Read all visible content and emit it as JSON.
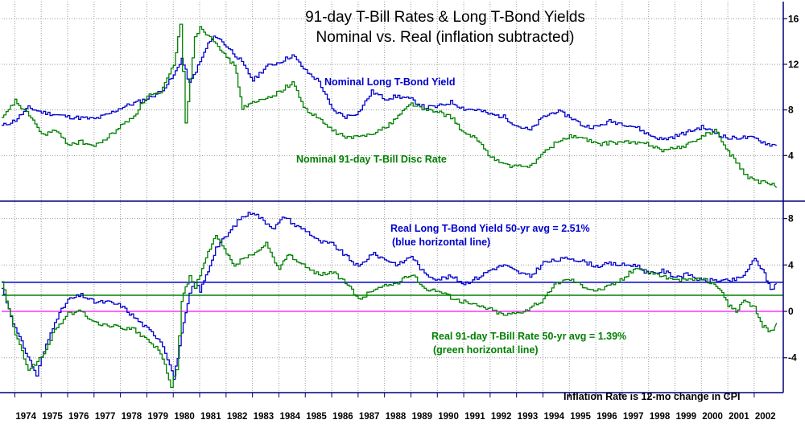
{
  "colors": {
    "background": "#ffffff",
    "grid": "#9a9a9a",
    "axis": "#00007a",
    "bond": "#0000cc",
    "bill": "#008000",
    "zero_line": "#ff33ff"
  },
  "chart_data": [
    {
      "panel": "top",
      "type": "line",
      "title": "91-day T-Bill Rates & Long T-Bond Yields",
      "subtitle": "Nominal vs. Real (inflation subtracted)",
      "ylim": [
        0,
        17.5
      ],
      "yticks": [
        4,
        8,
        12,
        16
      ],
      "grid": true,
      "x_unit": "year",
      "series": [
        {
          "name": "Nominal Long T-Bond Yield",
          "color": "#0000cc",
          "x": [
            1973.5,
            1974.0,
            1974.5,
            1975.0,
            1976.0,
            1977.0,
            1977.5,
            1978.0,
            1978.5,
            1979.0,
            1979.5,
            1980.0,
            1980.3,
            1980.6,
            1981.0,
            1981.3,
            1981.6,
            1982.0,
            1982.5,
            1983.0,
            1983.5,
            1984.0,
            1984.5,
            1985.0,
            1985.5,
            1986.0,
            1986.5,
            1987.0,
            1987.5,
            1988.0,
            1988.5,
            1989.0,
            1989.5,
            1990.0,
            1990.5,
            1991.0,
            1991.5,
            1992.0,
            1992.5,
            1993.0,
            1993.5,
            1994.0,
            1994.5,
            1995.0,
            1995.5,
            1996.0,
            1996.5,
            1997.0,
            1997.5,
            1998.0,
            1998.5,
            1999.0,
            1999.5,
            2000.0,
            2000.5,
            2001.0,
            2001.5,
            2002.0,
            2002.5,
            2002.85
          ],
          "values": [
            6.6,
            7.1,
            8.2,
            7.8,
            7.4,
            7.2,
            7.6,
            8.2,
            8.6,
            9.0,
            9.6,
            11.0,
            12.5,
            10.3,
            12.2,
            13.8,
            14.5,
            13.6,
            12.4,
            10.6,
            11.8,
            12.2,
            12.8,
            11.4,
            10.5,
            8.0,
            7.4,
            7.8,
            9.6,
            9.0,
            9.2,
            8.9,
            8.2,
            8.3,
            8.7,
            8.1,
            8.0,
            7.6,
            7.4,
            6.6,
            6.2,
            7.4,
            7.9,
            7.4,
            6.6,
            6.5,
            7.0,
            6.8,
            6.5,
            5.8,
            5.4,
            5.7,
            6.1,
            6.5,
            6.0,
            5.5,
            5.6,
            5.5,
            5.0,
            4.9
          ]
        },
        {
          "name": "Nominal 91-day T-Bill Disc Rate",
          "color": "#008000",
          "x": [
            1973.5,
            1974.0,
            1974.3,
            1974.6,
            1975.0,
            1975.5,
            1976.0,
            1976.5,
            1977.0,
            1977.5,
            1978.0,
            1978.5,
            1979.0,
            1979.5,
            1980.0,
            1980.25,
            1980.45,
            1980.8,
            1981.0,
            1981.3,
            1981.6,
            1982.0,
            1982.3,
            1982.6,
            1983.0,
            1983.5,
            1984.0,
            1984.5,
            1985.0,
            1985.5,
            1986.0,
            1986.5,
            1987.0,
            1987.5,
            1988.0,
            1988.5,
            1989.0,
            1989.5,
            1990.0,
            1990.5,
            1991.0,
            1991.5,
            1992.0,
            1992.5,
            1993.0,
            1993.5,
            1994.0,
            1994.5,
            1995.0,
            1995.5,
            1996.0,
            1996.5,
            1997.0,
            1997.5,
            1998.0,
            1998.5,
            1999.0,
            1999.5,
            2000.0,
            2000.5,
            2001.0,
            2001.3,
            2001.6,
            2002.0,
            2002.5,
            2002.85
          ],
          "values": [
            7.2,
            8.8,
            8.0,
            7.4,
            5.8,
            6.2,
            5.0,
            5.2,
            4.8,
            5.6,
            6.6,
            7.5,
            9.3,
            9.4,
            12.0,
            15.5,
            7.0,
            14.5,
            15.2,
            14.6,
            14.0,
            12.5,
            12.0,
            8.2,
            8.6,
            9.0,
            9.6,
            10.4,
            8.0,
            7.2,
            6.2,
            5.6,
            5.6,
            6.0,
            6.4,
            7.5,
            8.6,
            8.0,
            7.8,
            7.4,
            5.9,
            5.4,
            3.9,
            3.2,
            3.0,
            3.1,
            4.2,
            5.2,
            5.7,
            5.5,
            5.0,
            5.1,
            5.2,
            5.1,
            5.0,
            4.5,
            4.6,
            5.0,
            5.7,
            6.2,
            4.3,
            3.5,
            2.4,
            1.7,
            1.6,
            1.2
          ]
        }
      ],
      "annotations": [
        "Nominal Long T-Bond Yield",
        "Nominal 91-day T-Bill Disc Rate"
      ]
    },
    {
      "panel": "bottom",
      "type": "line",
      "ylim": [
        -7.0,
        9.5
      ],
      "yticks": [
        -4,
        0,
        4,
        8
      ],
      "grid": true,
      "x_unit": "year",
      "xlim": [
        1973.5,
        2003.1
      ],
      "xticks": [
        "1974",
        "1975",
        "1976",
        "1977",
        "1978",
        "1979",
        "1980",
        "1981",
        "1982",
        "1983",
        "1984",
        "1985",
        "1986",
        "1987",
        "1988",
        "1989",
        "1990",
        "1991",
        "1992",
        "1993",
        "1994",
        "1995",
        "1996",
        "1997",
        "1998",
        "1999",
        "2000",
        "2001",
        "2002"
      ],
      "series": [
        {
          "name": "Real Long T-Bond Yield",
          "color": "#0000cc",
          "x": [
            1973.5,
            1974.0,
            1974.4,
            1974.8,
            1975.0,
            1975.5,
            1976.0,
            1976.5,
            1977.0,
            1977.5,
            1978.0,
            1978.5,
            1979.0,
            1979.5,
            1979.85,
            1980.0,
            1980.3,
            1980.6,
            1980.8,
            1981.0,
            1981.3,
            1981.6,
            1982.0,
            1982.5,
            1983.0,
            1983.4,
            1983.8,
            1984.2,
            1984.6,
            1985.0,
            1985.5,
            1986.0,
            1986.5,
            1987.0,
            1987.5,
            1988.0,
            1988.5,
            1989.0,
            1989.5,
            1990.0,
            1990.5,
            1991.0,
            1991.5,
            1992.0,
            1992.5,
            1993.0,
            1993.5,
            1994.0,
            1994.5,
            1995.0,
            1995.5,
            1996.0,
            1996.5,
            1997.0,
            1997.5,
            1998.0,
            1998.5,
            1999.0,
            1999.5,
            2000.0,
            2000.5,
            2001.0,
            2001.5,
            2002.0,
            2002.3,
            2002.6,
            2002.85
          ],
          "values": [
            2.0,
            -1.5,
            -3.5,
            -5.5,
            -4.0,
            -0.8,
            1.0,
            1.4,
            0.8,
            0.8,
            0.5,
            -0.5,
            -1.5,
            -2.5,
            -4.5,
            -5.8,
            -2.0,
            1.5,
            2.5,
            1.8,
            3.5,
            5.5,
            6.5,
            8.0,
            8.6,
            7.8,
            7.2,
            8.2,
            7.4,
            7.0,
            6.0,
            5.8,
            4.8,
            3.8,
            5.0,
            4.5,
            4.0,
            4.8,
            3.2,
            2.8,
            3.0,
            2.4,
            2.9,
            3.6,
            4.0,
            3.4,
            3.0,
            4.2,
            4.4,
            4.6,
            4.3,
            3.9,
            4.1,
            4.0,
            4.0,
            3.2,
            3.5,
            3.0,
            3.2,
            2.6,
            2.7,
            2.6,
            2.9,
            4.5,
            3.6,
            1.9,
            2.4
          ]
        },
        {
          "name": "Real 91-day T-Bill Rate",
          "color": "#008000",
          "x": [
            1973.5,
            1974.0,
            1974.5,
            1975.0,
            1975.5,
            1976.0,
            1976.5,
            1977.0,
            1977.5,
            1978.0,
            1978.5,
            1979.0,
            1979.5,
            1979.9,
            1980.1,
            1980.3,
            1980.6,
            1980.8,
            1981.0,
            1981.3,
            1981.6,
            1982.0,
            1982.3,
            1982.6,
            1983.0,
            1983.5,
            1984.0,
            1984.3,
            1984.6,
            1985.0,
            1985.5,
            1986.0,
            1986.5,
            1987.0,
            1987.5,
            1988.0,
            1988.5,
            1989.0,
            1989.5,
            1990.0,
            1990.5,
            1991.0,
            1991.5,
            1992.0,
            1992.5,
            1993.0,
            1993.5,
            1994.0,
            1994.5,
            1995.0,
            1995.5,
            1996.0,
            1996.5,
            1997.0,
            1997.5,
            1998.0,
            1998.5,
            1999.0,
            1999.5,
            2000.0,
            2000.4,
            2000.7,
            2001.0,
            2001.3,
            2001.6,
            2002.0,
            2002.3,
            2002.6,
            2002.85
          ],
          "values": [
            2.5,
            -2.0,
            -5.0,
            -4.0,
            -1.6,
            -0.2,
            0.0,
            -1.0,
            -1.2,
            -1.4,
            -1.6,
            -2.5,
            -3.5,
            -6.5,
            -5.0,
            1.0,
            3.0,
            2.0,
            3.2,
            5.0,
            6.5,
            5.0,
            3.8,
            4.6,
            4.8,
            5.8,
            3.5,
            5.0,
            4.5,
            3.8,
            3.2,
            3.4,
            2.5,
            1.0,
            1.8,
            2.2,
            2.5,
            3.2,
            2.0,
            1.8,
            1.2,
            0.8,
            0.5,
            0.2,
            -0.3,
            -0.1,
            0.3,
            1.0,
            2.5,
            2.8,
            2.2,
            1.8,
            2.2,
            2.8,
            3.8,
            3.4,
            3.1,
            2.6,
            2.8,
            2.8,
            2.4,
            2.0,
            0.5,
            0.0,
            0.9,
            0.3,
            -1.2,
            -1.8,
            -1.0
          ]
        }
      ],
      "reference_lines": [
        {
          "name": "Real Long T-Bond Yield 50-yr avg",
          "value": 2.51,
          "color": "#0000cc"
        },
        {
          "name": "Real 91-day T-Bill Rate 50-yr avg",
          "value": 1.39,
          "color": "#008000"
        },
        {
          "name": "zero",
          "value": 0,
          "color": "#ff33ff"
        }
      ],
      "annotations": [
        "Real Long T-Bond Yield 50-yr avg = 2.51%",
        "(blue horizontal line)",
        "Real 91-day T-Bill Rate 50-yr avg = 1.39%",
        "(green horizontal line)",
        "Inflation Rate is 12-mo change in CPI"
      ]
    }
  ]
}
